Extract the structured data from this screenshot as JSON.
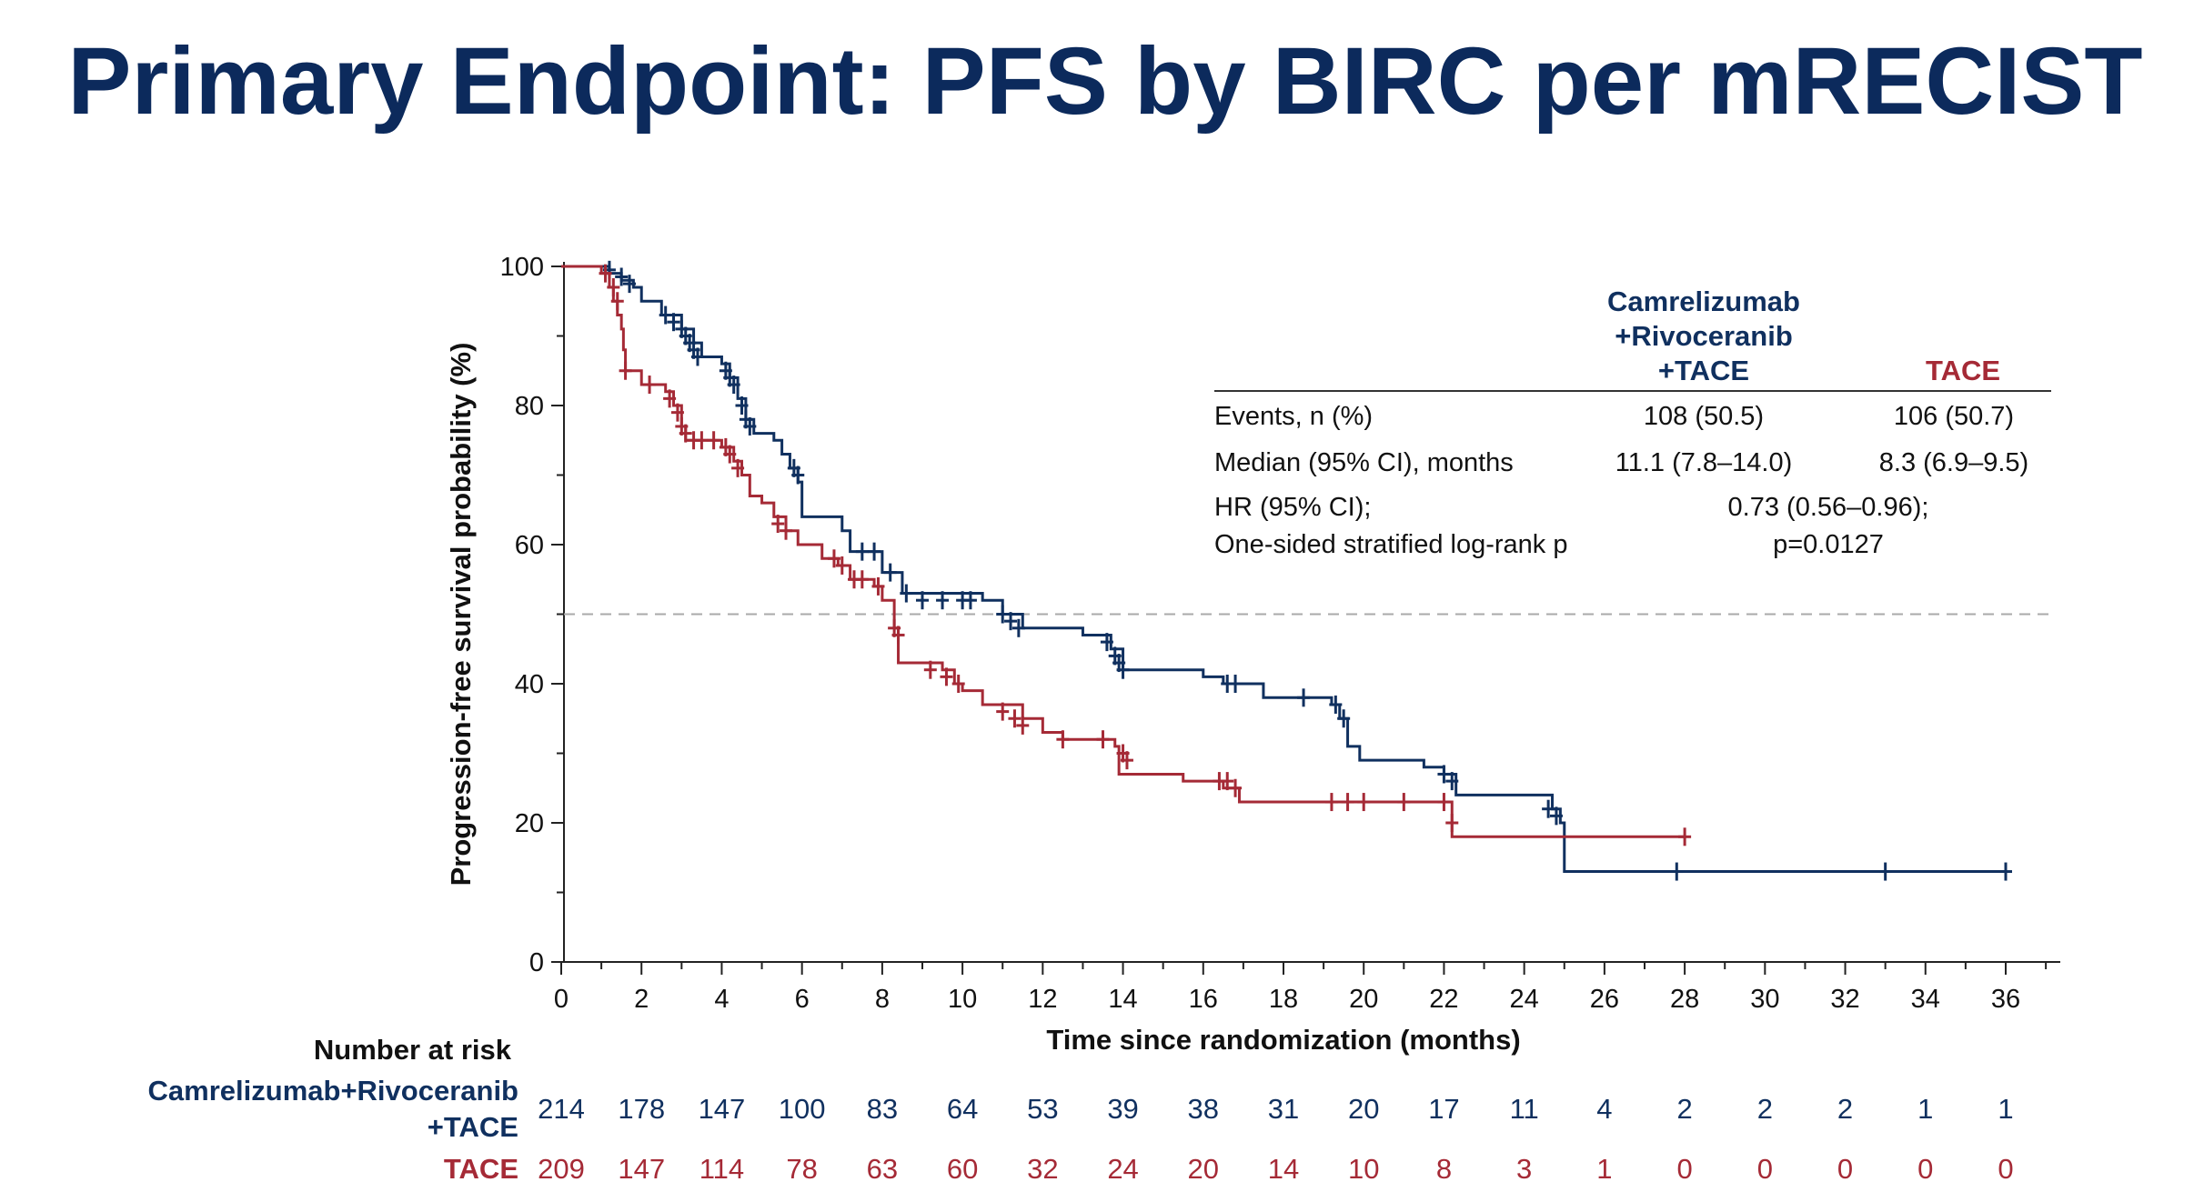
{
  "slide": {
    "title": "Primary Endpoint: PFS by BIRC per mRECIST",
    "colors": {
      "title": "#0c2a5c",
      "treatment": "#10305f",
      "control": "#a52a36",
      "reference": "#aaaaaa"
    }
  },
  "chart_data": {
    "type": "line",
    "subtype": "kaplan-meier",
    "title": "",
    "xlabel": "Time since randomization (months)",
    "ylabel": "Progression-free survival probability (%)",
    "xlim": [
      0,
      37.5
    ],
    "ylim": [
      0,
      100
    ],
    "xticks": [
      0,
      2,
      4,
      6,
      8,
      10,
      12,
      14,
      16,
      18,
      20,
      22,
      24,
      26,
      28,
      30,
      32,
      34,
      36
    ],
    "yticks": [
      0,
      20,
      40,
      60,
      80,
      100
    ],
    "reference_line": {
      "y": 50,
      "style": "dashed"
    },
    "grid": false,
    "legend": "none",
    "series": [
      {
        "name": "Camrelizumab+Rivoceranib+TACE",
        "color": "#10305f",
        "steps": [
          [
            0,
            100
          ],
          [
            1.2,
            99
          ],
          [
            1.5,
            98
          ],
          [
            1.8,
            97
          ],
          [
            2.0,
            95
          ],
          [
            2.5,
            93
          ],
          [
            3.0,
            91
          ],
          [
            3.3,
            89
          ],
          [
            3.5,
            87
          ],
          [
            4.0,
            86
          ],
          [
            4.2,
            84
          ],
          [
            4.4,
            81
          ],
          [
            4.6,
            78
          ],
          [
            4.8,
            76
          ],
          [
            5.3,
            75
          ],
          [
            5.5,
            73
          ],
          [
            5.7,
            71
          ],
          [
            5.9,
            69
          ],
          [
            6.0,
            64
          ],
          [
            7.0,
            62
          ],
          [
            7.2,
            59
          ],
          [
            8.0,
            56
          ],
          [
            8.5,
            53
          ],
          [
            10.5,
            52
          ],
          [
            11.0,
            50
          ],
          [
            11.5,
            48
          ],
          [
            13.0,
            47
          ],
          [
            13.7,
            45
          ],
          [
            14.0,
            42
          ],
          [
            16.0,
            41
          ],
          [
            16.5,
            40
          ],
          [
            17.5,
            38
          ],
          [
            19.2,
            37
          ],
          [
            19.4,
            35
          ],
          [
            19.6,
            31
          ],
          [
            19.9,
            29
          ],
          [
            21.5,
            28
          ],
          [
            22.0,
            27
          ],
          [
            22.3,
            24
          ],
          [
            24.7,
            22
          ],
          [
            24.9,
            20
          ],
          [
            25.0,
            13
          ],
          [
            36.0,
            13
          ]
        ],
        "censors": [
          [
            1.2,
            99.5
          ],
          [
            1.5,
            98.5
          ],
          [
            1.7,
            97.5
          ],
          [
            2.6,
            93
          ],
          [
            2.8,
            92
          ],
          [
            3.0,
            91
          ],
          [
            3.1,
            90
          ],
          [
            3.2,
            89
          ],
          [
            3.3,
            88
          ],
          [
            3.4,
            87
          ],
          [
            4.1,
            85
          ],
          [
            4.2,
            84
          ],
          [
            4.3,
            83
          ],
          [
            4.5,
            80
          ],
          [
            4.6,
            78
          ],
          [
            4.7,
            77
          ],
          [
            5.8,
            71
          ],
          [
            5.9,
            70
          ],
          [
            7.5,
            59
          ],
          [
            7.8,
            59
          ],
          [
            8.2,
            56
          ],
          [
            8.6,
            53
          ],
          [
            9.0,
            52
          ],
          [
            9.5,
            52
          ],
          [
            10.0,
            52
          ],
          [
            10.2,
            52
          ],
          [
            11.0,
            50
          ],
          [
            11.2,
            49
          ],
          [
            11.4,
            48
          ],
          [
            13.6,
            46
          ],
          [
            13.8,
            44
          ],
          [
            13.9,
            43
          ],
          [
            14.0,
            42
          ],
          [
            16.6,
            40
          ],
          [
            16.8,
            40
          ],
          [
            18.5,
            38
          ],
          [
            19.3,
            37
          ],
          [
            19.5,
            35
          ],
          [
            22.0,
            27
          ],
          [
            22.2,
            26
          ],
          [
            24.6,
            22
          ],
          [
            24.8,
            21
          ],
          [
            27.8,
            13
          ],
          [
            33.0,
            13
          ],
          [
            36.0,
            13
          ]
        ]
      },
      {
        "name": "TACE",
        "color": "#a52a36",
        "steps": [
          [
            0,
            100
          ],
          [
            1.0,
            99
          ],
          [
            1.2,
            97
          ],
          [
            1.3,
            95
          ],
          [
            1.4,
            93
          ],
          [
            1.5,
            91
          ],
          [
            1.55,
            88
          ],
          [
            1.6,
            85
          ],
          [
            2.0,
            83
          ],
          [
            2.6,
            82
          ],
          [
            2.8,
            80
          ],
          [
            3.0,
            77
          ],
          [
            3.1,
            75
          ],
          [
            4.0,
            74
          ],
          [
            4.3,
            72
          ],
          [
            4.5,
            70
          ],
          [
            4.7,
            67
          ],
          [
            5.0,
            66
          ],
          [
            5.3,
            64
          ],
          [
            5.6,
            62
          ],
          [
            5.9,
            60
          ],
          [
            6.5,
            58
          ],
          [
            6.9,
            57
          ],
          [
            7.2,
            55
          ],
          [
            7.8,
            54
          ],
          [
            8.0,
            52
          ],
          [
            8.3,
            48
          ],
          [
            8.4,
            43
          ],
          [
            9.5,
            42
          ],
          [
            9.8,
            40
          ],
          [
            10.0,
            39
          ],
          [
            10.5,
            37
          ],
          [
            11.5,
            35
          ],
          [
            12.0,
            33
          ],
          [
            12.5,
            32
          ],
          [
            13.8,
            31
          ],
          [
            13.9,
            27
          ],
          [
            15.5,
            26
          ],
          [
            16.5,
            25
          ],
          [
            16.9,
            23
          ],
          [
            22.2,
            18
          ],
          [
            28.0,
            18
          ]
        ],
        "censors": [
          [
            1.1,
            99
          ],
          [
            1.3,
            97
          ],
          [
            1.4,
            95
          ],
          [
            1.6,
            85
          ],
          [
            2.2,
            83
          ],
          [
            2.7,
            81
          ],
          [
            2.9,
            79
          ],
          [
            3.0,
            77
          ],
          [
            3.1,
            76
          ],
          [
            3.3,
            75
          ],
          [
            3.5,
            75
          ],
          [
            3.8,
            75
          ],
          [
            4.1,
            74
          ],
          [
            4.2,
            73
          ],
          [
            4.4,
            71
          ],
          [
            5.4,
            63
          ],
          [
            5.6,
            62
          ],
          [
            6.8,
            58
          ],
          [
            7.0,
            57
          ],
          [
            7.3,
            55
          ],
          [
            7.5,
            55
          ],
          [
            7.9,
            54
          ],
          [
            8.3,
            48
          ],
          [
            8.4,
            47
          ],
          [
            9.2,
            42
          ],
          [
            9.6,
            41
          ],
          [
            9.9,
            40
          ],
          [
            11.0,
            36
          ],
          [
            11.3,
            35
          ],
          [
            11.5,
            34
          ],
          [
            12.5,
            32
          ],
          [
            13.5,
            32
          ],
          [
            14.0,
            30
          ],
          [
            14.1,
            29
          ],
          [
            16.4,
            26
          ],
          [
            16.6,
            26
          ],
          [
            16.8,
            25
          ],
          [
            19.2,
            23
          ],
          [
            19.6,
            23
          ],
          [
            20.0,
            23
          ],
          [
            21.0,
            23
          ],
          [
            22.0,
            23
          ],
          [
            22.2,
            20
          ],
          [
            28.0,
            18
          ]
        ]
      }
    ],
    "median_line_y": 50
  },
  "stats": {
    "col_treatment": [
      "Camrelizumab",
      "+Rivoceranib",
      "+TACE"
    ],
    "col_control": "TACE",
    "rows": [
      {
        "label": "Events, n (%)",
        "treatment": "108 (50.5)",
        "control": "106 (50.7)"
      },
      {
        "label": "Median (95% CI), months",
        "treatment": "11.1 (7.8–14.0)",
        "control": "8.3 (6.9–9.5)"
      }
    ],
    "hr_label": [
      "HR (95% CI);",
      "One-sided stratified log-rank p"
    ],
    "hr_value": [
      "0.73 (0.56–0.96);",
      "p=0.0127"
    ]
  },
  "at_risk": {
    "header": "Number at risk",
    "rows": [
      {
        "label": [
          "Camrelizumab+Rivoceranib",
          "+TACE"
        ],
        "color": "#10305f",
        "values": [
          "214",
          "178",
          "147",
          "100",
          "83",
          "64",
          "53",
          "39",
          "38",
          "31",
          "20",
          "17",
          "11",
          "4",
          "2",
          "2",
          "2",
          "1",
          "1"
        ]
      },
      {
        "label": [
          "TACE"
        ],
        "color": "#a52a36",
        "values": [
          "209",
          "147",
          "114",
          "78",
          "63",
          "60",
          "32",
          "24",
          "20",
          "14",
          "10",
          "8",
          "3",
          "1",
          "0",
          "0",
          "0",
          "0",
          "0"
        ]
      }
    ]
  }
}
